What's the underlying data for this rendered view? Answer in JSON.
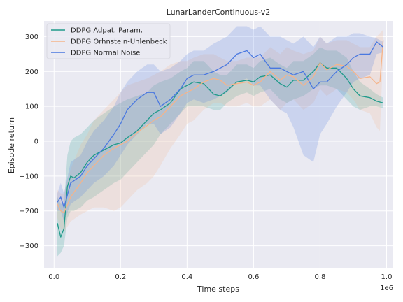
{
  "chart_data": {
    "type": "line",
    "title": "LunarLanderContinuous-v2",
    "xlabel": "Time steps",
    "ylabel": "Episode return",
    "x_offset_label": "1e6",
    "xlim": [
      -0.03,
      1.02
    ],
    "ylim": [
      -365,
      345
    ],
    "xticks": [
      {
        "value": 0.0,
        "label": "0.0"
      },
      {
        "value": 0.2,
        "label": "0.2"
      },
      {
        "value": 0.4,
        "label": "0.4"
      },
      {
        "value": 0.6,
        "label": "0.6"
      },
      {
        "value": 0.8,
        "label": "0.8"
      },
      {
        "value": 1.0,
        "label": "1.0"
      }
    ],
    "yticks": [
      {
        "value": -300,
        "label": "−300"
      },
      {
        "value": -200,
        "label": "−200"
      },
      {
        "value": -100,
        "label": "−100"
      },
      {
        "value": 0,
        "label": "0"
      },
      {
        "value": 100,
        "label": "100"
      },
      {
        "value": 200,
        "label": "200"
      },
      {
        "value": 300,
        "label": "300"
      }
    ],
    "grid": true,
    "legend_position": "top-left",
    "colors": {
      "background": "#eaeaf2",
      "grid": "#ffffff",
      "text": "#262626"
    },
    "series": [
      {
        "name": "DDPG Adpat. Param.",
        "color": "#1f9a8a",
        "x": [
          0.01,
          0.02,
          0.03,
          0.04,
          0.05,
          0.06,
          0.08,
          0.1,
          0.12,
          0.15,
          0.18,
          0.2,
          0.22,
          0.25,
          0.28,
          0.3,
          0.32,
          0.35,
          0.38,
          0.4,
          0.42,
          0.45,
          0.48,
          0.5,
          0.52,
          0.55,
          0.58,
          0.6,
          0.62,
          0.65,
          0.68,
          0.7,
          0.72,
          0.75,
          0.78,
          0.8,
          0.82,
          0.85,
          0.88,
          0.9,
          0.92,
          0.95,
          0.97,
          0.99
        ],
        "values": [
          -235,
          -275,
          -250,
          -130,
          -100,
          -105,
          -90,
          -60,
          -40,
          -25,
          -10,
          -5,
          10,
          30,
          60,
          80,
          90,
          110,
          150,
          160,
          170,
          165,
          135,
          130,
          145,
          170,
          175,
          170,
          185,
          190,
          165,
          155,
          175,
          175,
          200,
          225,
          210,
          210,
          180,
          150,
          130,
          125,
          115,
          110
        ],
        "lower": [
          -330,
          -320,
          -300,
          -220,
          -200,
          -200,
          -190,
          -170,
          -160,
          -140,
          -120,
          -110,
          -90,
          -60,
          -30,
          -10,
          20,
          50,
          80,
          100,
          100,
          100,
          90,
          90,
          110,
          130,
          140,
          130,
          140,
          150,
          120,
          110,
          120,
          130,
          150,
          160,
          160,
          150,
          120,
          100,
          90,
          100,
          100,
          95
        ],
        "upper": [
          -160,
          -180,
          -180,
          -40,
          0,
          10,
          20,
          40,
          60,
          80,
          100,
          110,
          120,
          130,
          140,
          160,
          170,
          180,
          200,
          210,
          230,
          230,
          200,
          190,
          190,
          220,
          220,
          210,
          230,
          240,
          220,
          210,
          230,
          230,
          250,
          270,
          260,
          260,
          240,
          200,
          170,
          150,
          135,
          125
        ]
      },
      {
        "name": "DDPG Orhnstein-Uhlenbeck",
        "color": "#f5b48a",
        "x": [
          0.01,
          0.02,
          0.03,
          0.05,
          0.08,
          0.1,
          0.12,
          0.15,
          0.18,
          0.2,
          0.22,
          0.25,
          0.28,
          0.3,
          0.32,
          0.35,
          0.38,
          0.4,
          0.42,
          0.45,
          0.48,
          0.5,
          0.52,
          0.55,
          0.58,
          0.6,
          0.62,
          0.65,
          0.68,
          0.7,
          0.72,
          0.75,
          0.78,
          0.8,
          0.82,
          0.85,
          0.88,
          0.9,
          0.92,
          0.95,
          0.97,
          0.98,
          0.99
        ],
        "values": [
          -180,
          -200,
          -205,
          -160,
          -120,
          -90,
          -70,
          -40,
          -20,
          -10,
          0,
          25,
          45,
          60,
          70,
          100,
          130,
          140,
          150,
          170,
          180,
          175,
          160,
          165,
          170,
          160,
          170,
          200,
          175,
          190,
          185,
          160,
          185,
          225,
          205,
          220,
          215,
          200,
          180,
          185,
          165,
          170,
          290
        ],
        "lower": [
          -220,
          -250,
          -260,
          -230,
          -210,
          -200,
          -190,
          -190,
          -200,
          -190,
          -170,
          -140,
          -120,
          -100,
          -70,
          -20,
          20,
          50,
          60,
          90,
          110,
          110,
          100,
          100,
          110,
          100,
          100,
          120,
          90,
          110,
          120,
          90,
          110,
          150,
          130,
          150,
          140,
          120,
          90,
          80,
          40,
          30,
          260
        ],
        "upper": [
          -140,
          -150,
          -150,
          -80,
          -10,
          20,
          60,
          90,
          120,
          140,
          160,
          170,
          180,
          190,
          200,
          220,
          230,
          230,
          240,
          250,
          250,
          240,
          230,
          230,
          240,
          240,
          240,
          270,
          250,
          270,
          260,
          250,
          260,
          300,
          280,
          290,
          290,
          280,
          270,
          270,
          300,
          310,
          320
        ]
      },
      {
        "name": "DDPG Normal Noise",
        "color": "#4a78e0",
        "x": [
          0.01,
          0.02,
          0.03,
          0.05,
          0.08,
          0.1,
          0.12,
          0.15,
          0.18,
          0.2,
          0.22,
          0.25,
          0.28,
          0.3,
          0.32,
          0.35,
          0.38,
          0.4,
          0.42,
          0.45,
          0.48,
          0.5,
          0.52,
          0.55,
          0.58,
          0.6,
          0.62,
          0.65,
          0.68,
          0.7,
          0.72,
          0.75,
          0.78,
          0.8,
          0.82,
          0.85,
          0.88,
          0.9,
          0.92,
          0.95,
          0.97,
          0.99
        ],
        "values": [
          -175,
          -160,
          -190,
          -120,
          -100,
          -70,
          -50,
          -20,
          20,
          50,
          90,
          120,
          140,
          140,
          100,
          120,
          150,
          180,
          190,
          190,
          200,
          210,
          220,
          250,
          260,
          240,
          250,
          210,
          210,
          200,
          190,
          200,
          150,
          170,
          170,
          200,
          220,
          240,
          250,
          250,
          285,
          270
        ],
        "lower": [
          -200,
          -200,
          -230,
          -180,
          -160,
          -140,
          -120,
          -100,
          -70,
          -40,
          -10,
          20,
          50,
          50,
          20,
          40,
          80,
          110,
          120,
          110,
          120,
          130,
          140,
          170,
          180,
          160,
          160,
          120,
          90,
          80,
          40,
          -40,
          -60,
          20,
          50,
          100,
          140,
          170,
          180,
          190,
          250,
          255
        ],
        "upper": [
          -150,
          -120,
          -150,
          -60,
          -40,
          0,
          30,
          60,
          100,
          140,
          170,
          200,
          220,
          220,
          200,
          210,
          230,
          250,
          260,
          260,
          280,
          290,
          300,
          330,
          330,
          320,
          330,
          300,
          300,
          290,
          280,
          300,
          270,
          300,
          280,
          300,
          300,
          310,
          310,
          300,
          295,
          285
        ]
      }
    ]
  }
}
